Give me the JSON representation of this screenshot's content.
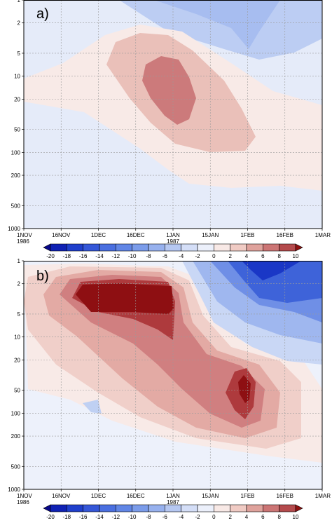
{
  "chart_data": [
    {
      "type": "contour",
      "panel_label": "a)",
      "x_ticks": [
        "1NOV",
        "16NOV",
        "1DEC",
        "16DEC",
        "1JAN",
        "15JAN",
        "1FEB",
        "16FEB",
        "1MAR"
      ],
      "x_year_labels": [
        {
          "at": "1NOV",
          "text": "1986"
        },
        {
          "at": "1JAN",
          "text": "1987"
        }
      ],
      "y_ticks": [
        "1",
        "2",
        "5",
        "10",
        "20",
        "50",
        "100",
        "200",
        "500",
        "1000"
      ],
      "y_scale": "log",
      "y_reversed": true,
      "grid": true,
      "features": [
        {
          "sign": "positive",
          "peak_value": 6,
          "peak_location": {
            "date": "1JAN",
            "pressure": 10
          }
        },
        {
          "sign": "negative",
          "peak_value": -4,
          "peak_location": {
            "date": "1FEB",
            "pressure": 2
          }
        }
      ]
    },
    {
      "type": "contour",
      "panel_label": "b)",
      "x_ticks": [
        "1NOV",
        "16NOV",
        "1DEC",
        "16DEC",
        "1JAN",
        "15JAN",
        "1FEB",
        "16FEB",
        "1MAR"
      ],
      "x_year_labels": [
        {
          "at": "1NOV",
          "text": "1986"
        },
        {
          "at": "1JAN",
          "text": "1987"
        }
      ],
      "y_ticks": [
        "1",
        "2",
        "5",
        "10",
        "20",
        "50",
        "100",
        "200",
        "500",
        "1000"
      ],
      "y_scale": "log",
      "y_reversed": true,
      "grid": true,
      "features": [
        {
          "sign": "positive",
          "peak_value": 10,
          "peak_location": {
            "date": "16DEC",
            "pressure": 2
          }
        },
        {
          "sign": "positive",
          "peak_value": 10,
          "peak_location": {
            "date": "1FEB",
            "pressure": 50
          }
        },
        {
          "sign": "negative",
          "peak_value": -16,
          "peak_location": {
            "date": "1FEB",
            "pressure": 1
          }
        }
      ]
    }
  ],
  "colorbar": {
    "labels": [
      "-20",
      "-18",
      "-16",
      "-14",
      "-12",
      "-10",
      "-8",
      "-6",
      "-4",
      "-2",
      "0",
      "2",
      "4",
      "6",
      "8",
      "10"
    ],
    "colors": [
      "#08088a",
      "#0f21b4",
      "#1f3fcc",
      "#3557d8",
      "#4a6fe0",
      "#6186e6",
      "#7b9cea",
      "#97b1ee",
      "#b6c8f2",
      "#d4def7",
      "#ecf0fb",
      "#f8e9e6",
      "#f0cbc4",
      "#dfa29c",
      "#cc7575",
      "#b44a4c",
      "#8f1010"
    ]
  }
}
